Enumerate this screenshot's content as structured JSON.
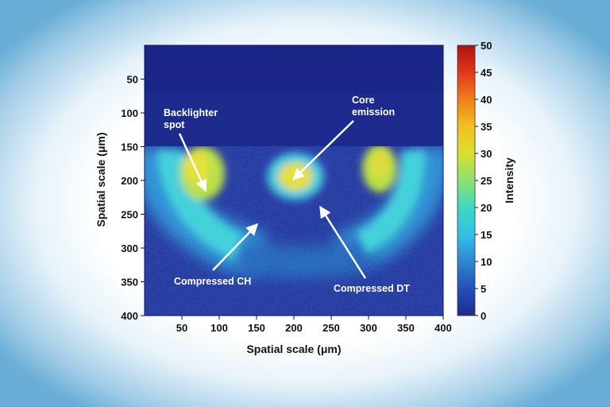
{
  "chart_data": {
    "type": "heatmap",
    "title": "",
    "xlabel": "Spatial scale (μm)",
    "ylabel": "Spatial scale (μm)",
    "x_ticks": [
      50,
      100,
      150,
      200,
      250,
      300,
      350,
      400
    ],
    "y_ticks": [
      50,
      100,
      150,
      200,
      250,
      300,
      350,
      400
    ],
    "xlim": [
      0,
      400
    ],
    "ylim": [
      400,
      0
    ],
    "colorbar": {
      "label": "Intensity",
      "ticks": [
        0,
        5,
        10,
        15,
        20,
        25,
        30,
        35,
        40,
        45,
        50
      ],
      "range": [
        0,
        50
      ],
      "colors": [
        "#1e2a8c",
        "#2550b8",
        "#2e86d0",
        "#33c0e8",
        "#3ed8c0",
        "#8ee070",
        "#d8e030",
        "#f4c020",
        "#f08018",
        "#e03818",
        "#b01010"
      ]
    },
    "features": [
      {
        "name": "Backlighter spot",
        "x": 85,
        "y": 220,
        "intensity": 28
      },
      {
        "name": "Core emission",
        "x": 200,
        "y": 200,
        "intensity": 30
      },
      {
        "name": "Compressed CH",
        "x": 110,
        "y": 250,
        "intensity": 22
      },
      {
        "name": "Compressed DT",
        "x": 235,
        "y": 255,
        "intensity": 9
      }
    ],
    "annotations": [
      {
        "text_lines": [
          "Backlighter",
          "spot"
        ],
        "target": "Backlighter spot"
      },
      {
        "text_lines": [
          "Core",
          "emission"
        ],
        "target": "Core emission"
      },
      {
        "text_lines": [
          "Compressed CH"
        ],
        "target": "Compressed CH"
      },
      {
        "text_lines": [
          "Compressed DT"
        ],
        "target": "Compressed DT"
      }
    ]
  }
}
